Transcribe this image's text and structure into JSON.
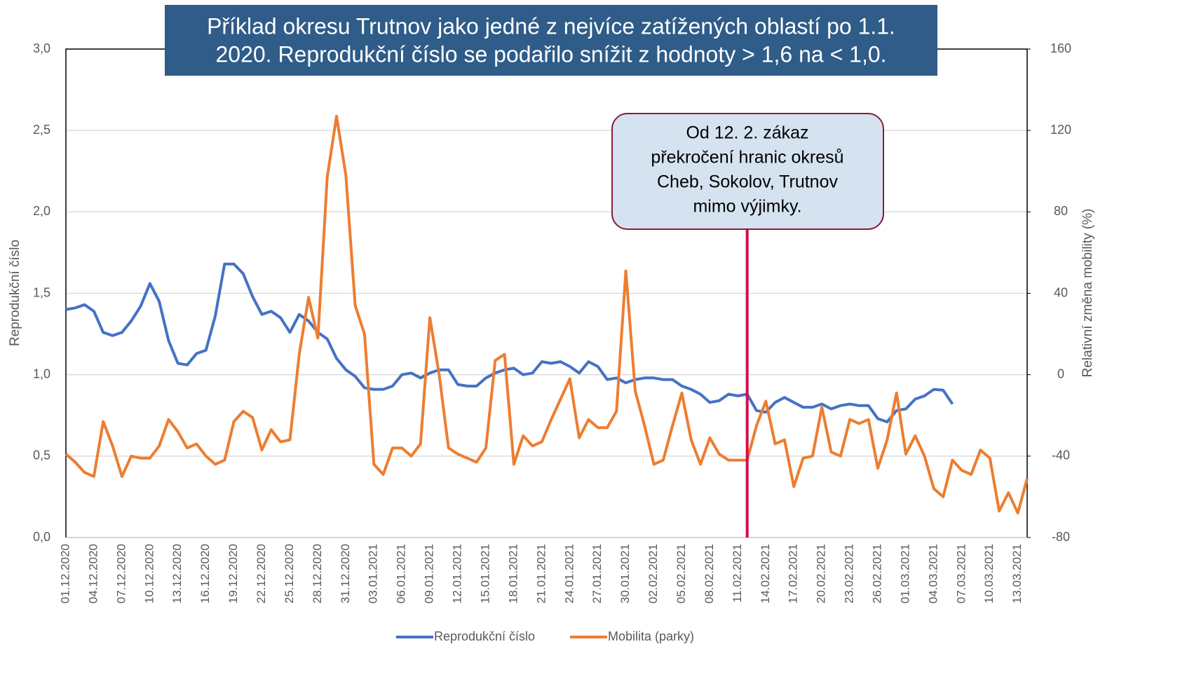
{
  "chart_data": {
    "type": "line",
    "title": [
      "Příklad okresu Trutnov jako jedné z nejvíce zatížených oblastí po 1.1.",
      "2020. Reprodukční číslo se podařilo snížit z hodnoty > 1,6 na < 1,0."
    ],
    "ylabel": "Reprodukční číslo",
    "y2label": "Relativní změna mobility (%)",
    "annotation": [
      "Od 12. 2. zákaz",
      "překročení hranic okresů",
      "Cheb, Sokolov, Trutnov",
      "mimo výjimky."
    ],
    "categories": [
      "01.12.2020",
      null,
      null,
      "04.12.2020",
      null,
      null,
      "07.12.2020",
      null,
      null,
      "10.12.2020",
      null,
      null,
      "13.12.2020",
      null,
      null,
      "16.12.2020",
      null,
      null,
      "19.12.2020",
      null,
      null,
      "22.12.2020",
      null,
      null,
      "25.12.2020",
      null,
      null,
      "28.12.2020",
      null,
      null,
      "31.12.2020",
      null,
      null,
      "03.01.2021",
      null,
      null,
      "06.01.2021",
      null,
      null,
      "09.01.2021",
      null,
      null,
      "12.01.2021",
      null,
      null,
      "15.01.2021",
      null,
      null,
      "18.01.2021",
      null,
      null,
      "21.01.2021",
      null,
      null,
      "24.01.2021",
      null,
      null,
      "27.01.2021",
      null,
      null,
      "30.01.2021",
      null,
      null,
      "02.02.2021",
      null,
      null,
      "05.02.2021",
      null,
      null,
      "08.02.2021",
      null,
      null,
      "11.02.2021",
      null,
      null,
      "14.02.2021",
      null,
      null,
      "17.02.2021",
      null,
      null,
      "20.02.2021",
      null,
      null,
      "23.02.2021",
      null,
      null,
      "26.02.2021",
      null,
      null,
      "01.03.2021",
      null,
      null,
      "04.03.2021",
      null,
      null,
      "07.03.2021",
      null,
      null,
      "10.03.2021",
      null,
      null,
      "13.03.2021",
      null
    ],
    "series": [
      {
        "name": "Reprodukční číslo",
        "color": "#4472c4",
        "axis": "y",
        "values": [
          1.4,
          1.41,
          1.43,
          1.39,
          1.26,
          1.24,
          1.26,
          1.33,
          1.42,
          1.56,
          1.45,
          1.21,
          1.07,
          1.06,
          1.13,
          1.15,
          1.36,
          1.68,
          1.68,
          1.62,
          1.48,
          1.37,
          1.39,
          1.35,
          1.26,
          1.37,
          1.33,
          1.26,
          1.22,
          1.1,
          1.03,
          0.99,
          0.92,
          0.91,
          0.91,
          0.93,
          1.0,
          1.01,
          0.98,
          1.01,
          1.03,
          1.03,
          0.94,
          0.93,
          0.93,
          0.98,
          1.01,
          1.03,
          1.04,
          1.0,
          1.01,
          1.08,
          1.07,
          1.08,
          1.05,
          1.01,
          1.08,
          1.05,
          0.97,
          0.98,
          0.95,
          0.97,
          0.98,
          0.98,
          0.97,
          0.97,
          0.93,
          0.91,
          0.88,
          0.83,
          0.84,
          0.88,
          0.87,
          0.88,
          0.78,
          0.77,
          0.83,
          0.86,
          0.83,
          0.8,
          0.8,
          0.82,
          0.79,
          0.81,
          0.82,
          0.81,
          0.81,
          0.73,
          0.71,
          0.78,
          0.79,
          0.85,
          0.87,
          0.91,
          0.905,
          0.82,
          null,
          null,
          null,
          null,
          null,
          null,
          null,
          null
        ]
      },
      {
        "name": "Mobilita (parky)",
        "color": "#ed7d31",
        "axis": "y2",
        "values": [
          -39,
          -43,
          -48,
          -50,
          -23,
          -35,
          -50,
          -40,
          -41,
          -41,
          -35,
          -22,
          -28,
          -36,
          -34,
          -40,
          -44,
          -42,
          -23,
          -18,
          -21,
          -37,
          -27,
          -33,
          -32,
          10,
          38,
          18,
          97,
          127,
          98,
          34,
          20,
          -44,
          -49,
          -36,
          -36,
          -40,
          -34,
          28,
          0,
          -36,
          -39,
          -41,
          -43,
          -36,
          7,
          10,
          -44,
          -30,
          -35,
          -33,
          -22,
          -12,
          -2,
          -31,
          -22,
          -26,
          -26,
          -18,
          51,
          -8,
          -25,
          -44,
          -42,
          -25,
          -9,
          -32,
          -44,
          -31,
          -39,
          -42,
          -42,
          -42,
          -25,
          -13,
          -34,
          -32,
          -55,
          -41,
          -40,
          -16,
          -38,
          -40,
          -22,
          -24,
          -22,
          -46,
          -32,
          -9,
          -39,
          -30,
          -40,
          -56,
          -60,
          -42,
          -47,
          -49,
          -37,
          -41,
          -67,
          -58,
          -68,
          -51
        ]
      }
    ],
    "ylim": [
      0,
      3
    ],
    "yticks": [
      {
        "value": 0,
        "label": "0,0"
      },
      {
        "value": 0.5,
        "label": "0,5"
      },
      {
        "value": 1,
        "label": "1,0"
      },
      {
        "value": 1.5,
        "label": "1,5"
      },
      {
        "value": 2,
        "label": "2,0"
      },
      {
        "value": 2.5,
        "label": "2,5"
      },
      {
        "value": 3,
        "label": "3,0"
      }
    ],
    "y2lim": [
      -80,
      160
    ],
    "y2ticks": [
      -80,
      -40,
      0,
      40,
      80,
      120,
      160
    ],
    "grid": true
  }
}
